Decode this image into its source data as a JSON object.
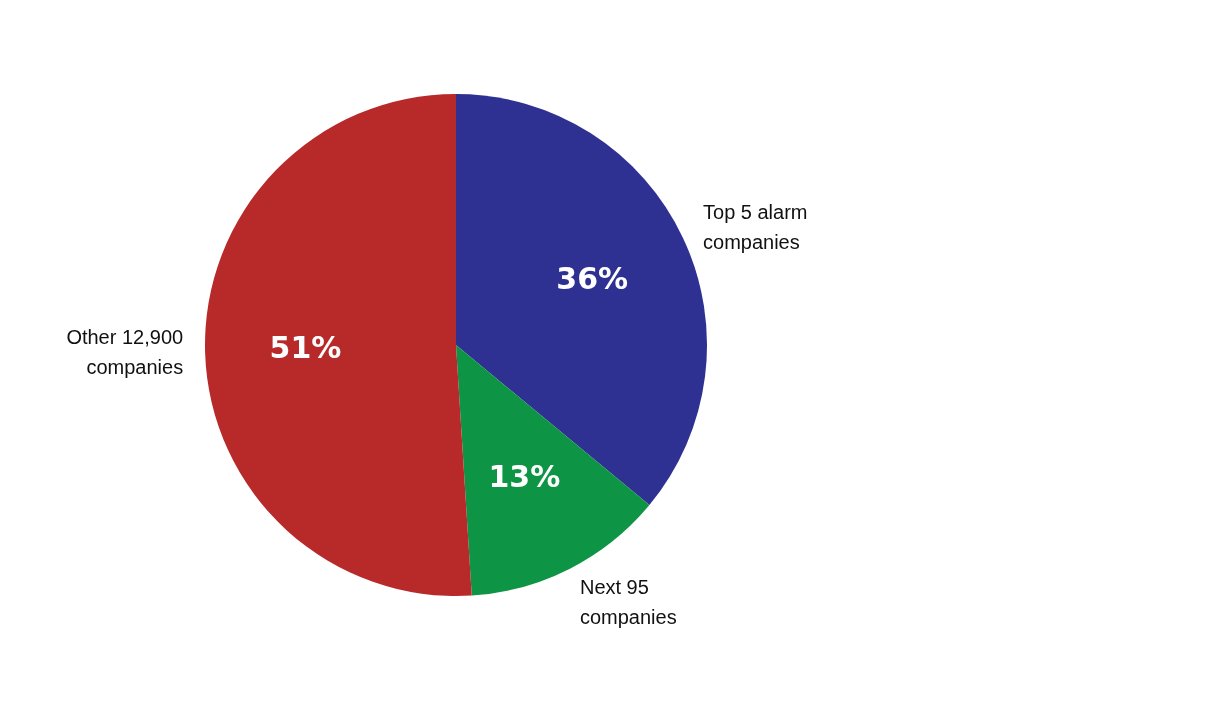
{
  "chart_data": {
    "type": "pie",
    "categories": [
      "Top 5 alarm companies",
      "Next 95 companies",
      "Other 12,900 companies"
    ],
    "values": [
      36,
      13,
      51
    ],
    "value_labels": [
      "36%",
      "13%",
      "51%"
    ],
    "colors": [
      "#2e3192",
      "#0d9444",
      "#b8292a"
    ],
    "legend": false
  }
}
